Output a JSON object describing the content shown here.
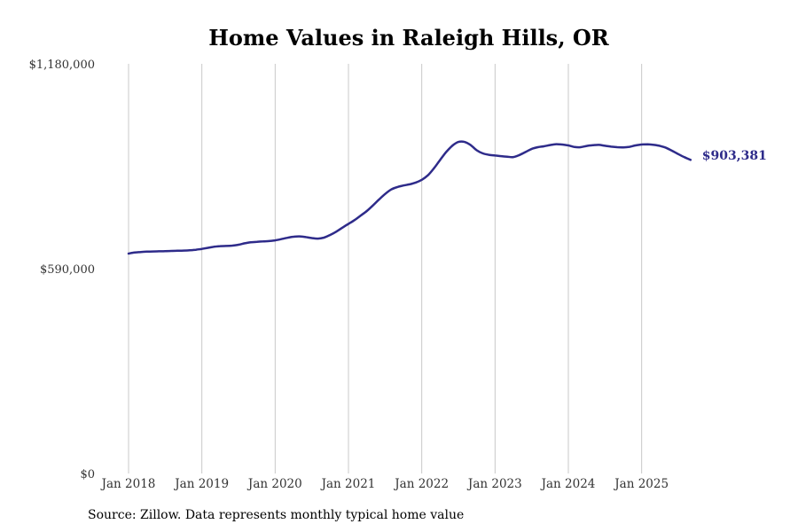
{
  "chart_data": {
    "type": "line",
    "title": "Home Values in Raleigh Hills, OR",
    "xlabel": "",
    "ylabel": "",
    "ylim": [
      0,
      1180000
    ],
    "y_ticks": [
      0,
      590000,
      1180000
    ],
    "y_tick_labels": [
      "$0",
      "$590,000",
      "$1,180,000"
    ],
    "x_ticks": [
      "Jan 2018",
      "Jan 2019",
      "Jan 2020",
      "Jan 2021",
      "Jan 2022",
      "Jan 2023",
      "Jan 2024",
      "Jan 2025"
    ],
    "grid": "vertical",
    "line_color": "#2e2b8a",
    "grid_color": "#c8c8c8",
    "end_label": "$903,381",
    "series": [
      {
        "name": "Typical home value",
        "start": "Jan 2018",
        "frequency": "monthly",
        "values": [
          633500,
          636500,
          638000,
          639000,
          639500,
          640000,
          640500,
          641000,
          641500,
          642000,
          643000,
          644500,
          647000,
          650000,
          653000,
          655000,
          655500,
          656500,
          659000,
          663000,
          666000,
          667500,
          668500,
          669500,
          671500,
          675000,
          679000,
          682000,
          683000,
          681000,
          678000,
          676500,
          679500,
          687000,
          696500,
          708000,
          719000,
          730000,
          743000,
          756000,
          772000,
          789000,
          805000,
          818000,
          825000,
          829500,
          833000,
          838000,
          846000,
          859000,
          879000,
          903000,
          926000,
          944000,
          955000,
          955000,
          946000,
          931000,
          922000,
          918000,
          916000,
          914000,
          912500,
          911500,
          917500,
          926000,
          935000,
          940000,
          942500,
          946000,
          948500,
          947500,
          945000,
          940500,
          940000,
          943500,
          945500,
          946500,
          944000,
          941500,
          940000,
          939500,
          941000,
          945000,
          947500,
          948000,
          946500,
          943500,
          938000,
          929500,
          920000,
          911000,
          903381
        ]
      }
    ]
  },
  "source_note": "Source: Zillow. Data represents monthly typical home value"
}
